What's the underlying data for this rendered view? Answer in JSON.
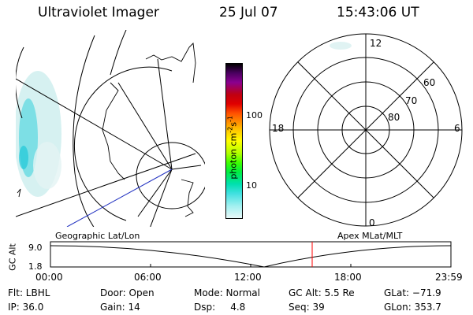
{
  "header": {
    "instrument": "Ultraviolet Imager",
    "date": "25 Jul 07",
    "time": "15:43:06 UT"
  },
  "colorbar": {
    "label": "photon cm",
    "label_sup1": "-2",
    "label_mid": "s",
    "label_sup2": "-1",
    "ticks": [
      "100",
      "10"
    ],
    "colors": [
      "#000000",
      "#4a0060",
      "#8a0090",
      "#c00010",
      "#e00000",
      "#ff5000",
      "#ff9000",
      "#ffd000",
      "#ffff00",
      "#b0ff00",
      "#40ff00",
      "#00ee40",
      "#00e0b0",
      "#40e0e0",
      "#a0f0f0",
      "#e8f8f8"
    ]
  },
  "geo_map": {
    "label": "Geographic Lat/Lon"
  },
  "polar_map": {
    "label": "Apex MLat/MLT",
    "mlt_labels": [
      "12",
      "18",
      "6",
      "0"
    ],
    "lat_labels": [
      "60",
      "70",
      "80"
    ]
  },
  "altitude_plot": {
    "ylabel": "GC Alt",
    "yticks": [
      "9.0",
      "1.8"
    ],
    "xticks": [
      "00:00",
      "06:00",
      "12:00",
      "18:00",
      "23:59"
    ],
    "marker_color": "#ff0000"
  },
  "status": {
    "col1": [
      "Flt: LBHL",
      "IP: 36.0"
    ],
    "col2": [
      "Door: Open",
      "Gain: 14"
    ],
    "col3": [
      "Mode: Normal",
      "Dsp:     4.8"
    ],
    "col4": [
      "GC Alt: 5.5 Re",
      "Seq: 39"
    ],
    "col5": [
      "GLat: −71.9",
      "GLon: 353.7"
    ]
  }
}
